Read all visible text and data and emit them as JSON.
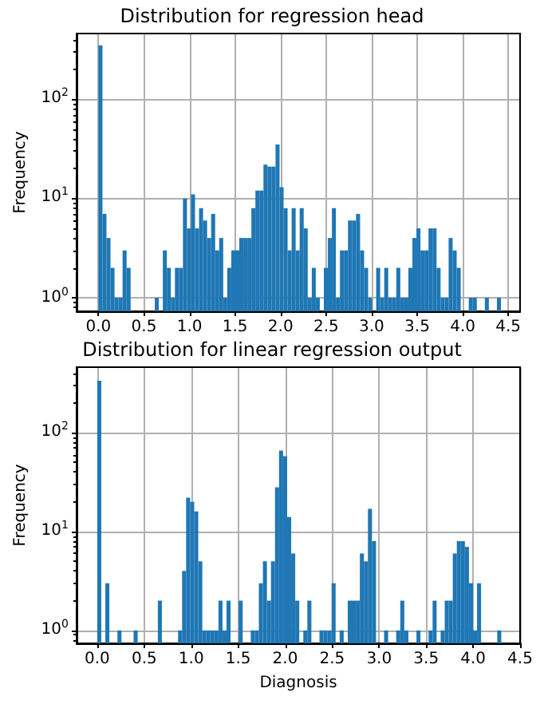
{
  "chart_data": [
    {
      "type": "histogram",
      "title": "Distribution for regression head",
      "ylabel": "Frequency",
      "color": "#1f77b4",
      "log": "y",
      "grid": true,
      "bins": [
        0,
        0.0442,
        0.0884,
        0.1326,
        0.1768,
        0.221,
        0.2652,
        0.3094,
        0.3536,
        0.6188,
        0.663,
        0.7072,
        0.7514,
        0.7956,
        0.8398,
        0.884,
        0.9282,
        0.9724,
        1.0166,
        1.0608,
        1.105,
        1.1492,
        1.1934,
        1.2376,
        1.2818,
        1.326,
        1.3702,
        1.4144,
        1.4586,
        1.5028,
        1.547,
        1.5912,
        1.6354,
        1.6796,
        1.7238,
        1.768,
        1.8122,
        1.8564,
        1.9006,
        1.9448,
        1.989,
        2.0332,
        2.0774,
        2.1216,
        2.1658,
        2.21,
        2.2542,
        2.2984,
        2.3426,
        2.3868,
        2.431,
        2.4752,
        2.5194,
        2.5636,
        2.6078,
        2.652,
        2.6962,
        2.7404,
        2.7846,
        2.8288,
        2.873,
        2.9172,
        2.9614,
        3.0056,
        3.0498,
        3.094,
        3.1382,
        3.1824,
        3.2266,
        3.2708,
        3.315,
        3.3592,
        3.4034,
        3.4476,
        3.4918,
        3.536,
        3.5802,
        3.6244,
        3.6686,
        3.7128,
        3.757,
        3.8012,
        3.8454,
        3.8896,
        3.9338,
        3.978,
        4.0664,
        4.1106,
        4.1548,
        4.2432,
        4.2874,
        4.3758,
        4.42
      ],
      "values": [
        350,
        7,
        4,
        2,
        1,
        1,
        3,
        2,
        null,
        1,
        null,
        3,
        2,
        1,
        2,
        2,
        10,
        5,
        11,
        5,
        8,
        6,
        4,
        7,
        3,
        4,
        1,
        2,
        3,
        3,
        4,
        4,
        4,
        8,
        12,
        12,
        22,
        21,
        21,
        35,
        13,
        8,
        3,
        8,
        3,
        8,
        5,
        1,
        2,
        1,
        null,
        2,
        4,
        8,
        1,
        3,
        3,
        6,
        6,
        7,
        3,
        2,
        1,
        null,
        2,
        1,
        2,
        1,
        1,
        2,
        1,
        1,
        2,
        4,
        5,
        3,
        3,
        5,
        5,
        2,
        1,
        1,
        4,
        3,
        2,
        null,
        1,
        1,
        null,
        1,
        null,
        1
      ],
      "xlim": [
        -0.24,
        4.63
      ],
      "xticks": [
        {
          "value": 0,
          "label": "0.0"
        },
        {
          "value": 0.5,
          "label": "0.5"
        },
        {
          "value": 1,
          "label": "1.0"
        },
        {
          "value": 1.5,
          "label": "1.5"
        },
        {
          "value": 2,
          "label": "2.0"
        },
        {
          "value": 2.5,
          "label": "2.5"
        },
        {
          "value": 3,
          "label": "3.0"
        },
        {
          "value": 3.5,
          "label": "3.5"
        },
        {
          "value": 4,
          "label": "4.0"
        },
        {
          "value": 4.5,
          "label": "4.5"
        }
      ],
      "ylim": [
        0.73,
        460
      ],
      "yticks": [
        {
          "value": 1,
          "label": "10$^{0}$"
        },
        {
          "value": 10,
          "label": "10$^{1}$"
        },
        {
          "value": 100,
          "label": "10$^{2}$"
        }
      ]
    },
    {
      "type": "histogram",
      "title": "Distribution for linear regression output",
      "xlabel": "Diagnosis",
      "ylabel": "Frequency",
      "color": "#1f77b4",
      "log": "y",
      "grid": true,
      "bins": [
        0,
        0.043,
        0.086,
        0.129,
        0.215,
        0.258,
        0.387,
        0.43,
        0.645,
        0.688,
        0.86,
        0.903,
        0.946,
        0.989,
        1.032,
        1.075,
        1.118,
        1.161,
        1.204,
        1.247,
        1.29,
        1.333,
        1.376,
        1.419,
        1.505,
        1.548,
        1.634,
        1.677,
        1.72,
        1.763,
        1.806,
        1.849,
        1.892,
        1.935,
        1.978,
        2.021,
        2.064,
        2.107,
        2.15,
        2.193,
        2.236,
        2.279,
        2.365,
        2.408,
        2.451,
        2.494,
        2.537,
        2.58,
        2.623,
        2.666,
        2.709,
        2.752,
        2.795,
        2.838,
        2.881,
        2.924,
        2.967,
        3.053,
        3.096,
        3.182,
        3.225,
        3.268,
        3.311,
        3.397,
        3.44,
        3.526,
        3.569,
        3.612,
        3.655,
        3.698,
        3.741,
        3.784,
        3.827,
        3.87,
        3.913,
        3.956,
        3.999,
        4.042,
        4.085,
        4.257,
        4.3
      ],
      "values": [
        335,
        null,
        3,
        null,
        1,
        null,
        1,
        null,
        2,
        null,
        1,
        4,
        22,
        20,
        16,
        5,
        1,
        1,
        1,
        1,
        2,
        1,
        2,
        null,
        2,
        null,
        1,
        1,
        3,
        5,
        2,
        5,
        28,
        66,
        58,
        14,
        6,
        2,
        null,
        1,
        2,
        null,
        1,
        1,
        1,
        3,
        null,
        1,
        null,
        2,
        2,
        2,
        6,
        5,
        17,
        8,
        null,
        1,
        null,
        1,
        2,
        1,
        null,
        1,
        null,
        1,
        2,
        null,
        1,
        2,
        2,
        6,
        8,
        8,
        7,
        3,
        1,
        3,
        null,
        1
      ],
      "xlim": [
        -0.22,
        4.5
      ],
      "xticks": [
        {
          "value": 0,
          "label": "0.0"
        },
        {
          "value": 0.5,
          "label": "0.5"
        },
        {
          "value": 1,
          "label": "1.0"
        },
        {
          "value": 1.5,
          "label": "1.5"
        },
        {
          "value": 2,
          "label": "2.0"
        },
        {
          "value": 2.5,
          "label": "2.5"
        },
        {
          "value": 3,
          "label": "3.0"
        },
        {
          "value": 3.5,
          "label": "3.5"
        },
        {
          "value": 4,
          "label": "4.0"
        },
        {
          "value": 4.5,
          "label": "4.5"
        }
      ],
      "ylim": [
        0.74,
        460
      ],
      "yticks": [
        {
          "value": 1,
          "label": "10$^{0}$"
        },
        {
          "value": 10,
          "label": "10$^{1}$"
        },
        {
          "value": 100,
          "label": "10$^{2}$"
        }
      ]
    }
  ]
}
